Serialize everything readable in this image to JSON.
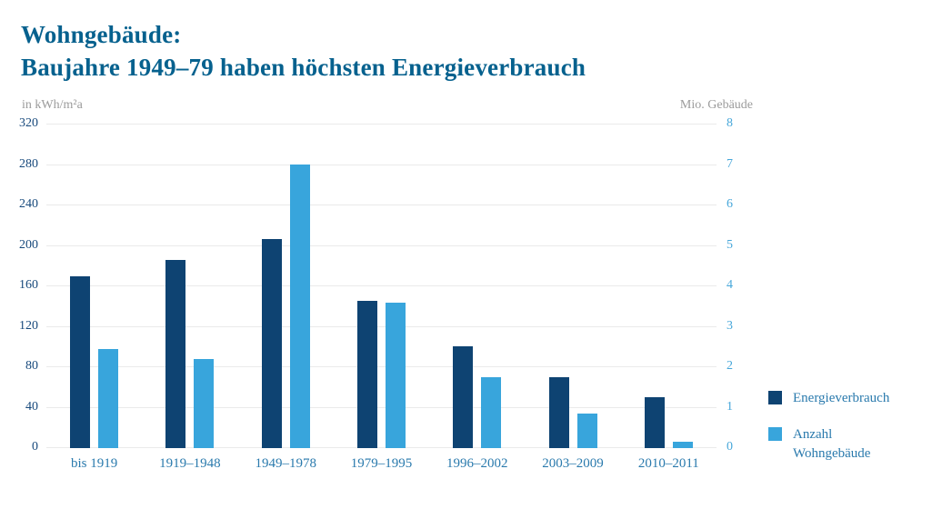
{
  "title": {
    "line1": "Wohngebäude:",
    "line2": "Baujahre 1949–79 haben höchsten Energieverbrauch"
  },
  "chart_data": {
    "type": "bar",
    "title": "Wohngebäude: Baujahre 1949–79 haben höchsten Energieverbrauch",
    "categories": [
      "bis 1919",
      "1919–1948",
      "1949–1978",
      "1979–1995",
      "1996–2002",
      "2003–2009",
      "2010–2011"
    ],
    "series": [
      {
        "name": "Energieverbrauch",
        "axis": "left",
        "color": "#0e4372",
        "values": [
          170,
          186,
          207,
          146,
          101,
          70,
          50
        ]
      },
      {
        "name": "Anzahl Wohngebäude",
        "axis": "right",
        "color": "#38a5dc",
        "values": [
          2.45,
          2.2,
          7.0,
          3.6,
          1.75,
          0.85,
          0.15
        ]
      }
    ],
    "left_axis": {
      "label": "in kWh/m²a",
      "min": 0,
      "max": 320,
      "ticks": [
        320,
        280,
        240,
        200,
        160,
        120,
        80,
        40,
        0
      ]
    },
    "right_axis": {
      "label": "Mio. Gebäude",
      "min": 0,
      "max": 8,
      "ticks": [
        8,
        7,
        6,
        5,
        4,
        3,
        2,
        1,
        0
      ]
    },
    "grid": true,
    "legend_position": "right"
  },
  "colors": {
    "title": "#06618e",
    "bar_dark": "#0e4372",
    "bar_light": "#38a5dc",
    "left_ticks": "#17497c",
    "right_ticks": "#47a7da",
    "category_labels": "#2a7aad",
    "unit_labels": "#9b9b9b",
    "gridline": "#eaeaea"
  }
}
